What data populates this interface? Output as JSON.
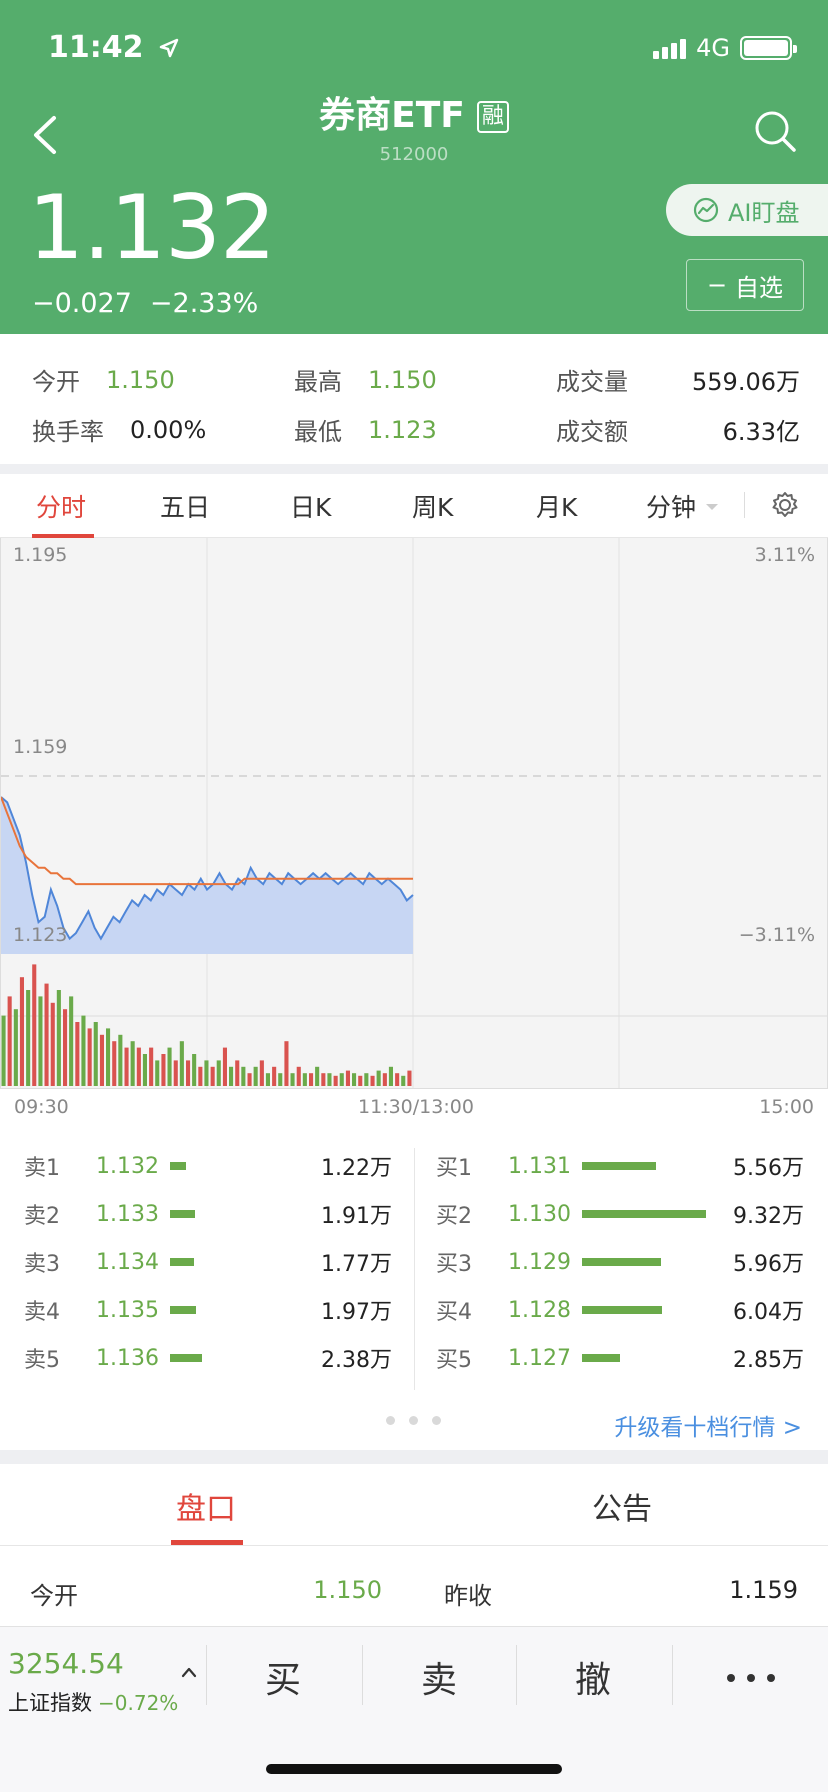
{
  "status_bar": {
    "time": "11:42",
    "network": "4G"
  },
  "header": {
    "title": "券商ETF",
    "badge": "融",
    "code": "512000",
    "price": "1.132",
    "change": "−0.027",
    "change_pct": "−2.33%",
    "ai_button": "AI盯盘",
    "watch_button": "自选",
    "watch_minus": "−"
  },
  "stats": {
    "open_label": "今开",
    "open": "1.150",
    "high_label": "最高",
    "high": "1.150",
    "volume_label": "成交量",
    "volume": "559.06万",
    "turnover_label": "换手率",
    "turnover": "0.00%",
    "low_label": "最低",
    "low": "1.123",
    "amount_label": "成交额",
    "amount": "6.33亿"
  },
  "tabs": [
    "分时",
    "五日",
    "日K",
    "周K",
    "月K",
    "分钟"
  ],
  "chart_data": {
    "type": "line",
    "y_top": "1.195",
    "y_mid": "1.159",
    "y_bottom": "1.123",
    "pct_top": "3.11%",
    "pct_bottom": "−3.11%",
    "x_labels": [
      "09:30",
      "11:30/13:00",
      "15:00"
    ],
    "ylim": [
      1.123,
      1.195
    ],
    "price_series": [
      1.15,
      1.149,
      1.146,
      1.143,
      1.138,
      1.132,
      1.127,
      1.128,
      1.133,
      1.13,
      1.126,
      1.124,
      1.125,
      1.127,
      1.129,
      1.126,
      1.124,
      1.126,
      1.128,
      1.127,
      1.129,
      1.131,
      1.13,
      1.132,
      1.131,
      1.133,
      1.132,
      1.134,
      1.133,
      1.132,
      1.134,
      1.133,
      1.135,
      1.133,
      1.134,
      1.136,
      1.134,
      1.133,
      1.135,
      1.134,
      1.137,
      1.135,
      1.134,
      1.136,
      1.135,
      1.134,
      1.136,
      1.135,
      1.134,
      1.135,
      1.136,
      1.135,
      1.136,
      1.135,
      1.134,
      1.135,
      1.136,
      1.135,
      1.134,
      1.136,
      1.135,
      1.134,
      1.135,
      1.134,
      1.133,
      1.131,
      1.132
    ],
    "avg_series": [
      1.15,
      1.147,
      1.144,
      1.141,
      1.139,
      1.138,
      1.137,
      1.137,
      1.136,
      1.136,
      1.135,
      1.135,
      1.134,
      1.134,
      1.134,
      1.134,
      1.134,
      1.134,
      1.134,
      1.134,
      1.134,
      1.134,
      1.134,
      1.134,
      1.134,
      1.134,
      1.134,
      1.134,
      1.134,
      1.134,
      1.134,
      1.134,
      1.134,
      1.134,
      1.134,
      1.134,
      1.134,
      1.134,
      1.134,
      1.135,
      1.135,
      1.135,
      1.135,
      1.135,
      1.135,
      1.135,
      1.135,
      1.135,
      1.135,
      1.135,
      1.135,
      1.135,
      1.135,
      1.135,
      1.135,
      1.135,
      1.135,
      1.135,
      1.135,
      1.135,
      1.135,
      1.135,
      1.135,
      1.135,
      1.135,
      1.135,
      1.135
    ],
    "volume_bars": [
      0.55,
      0.7,
      0.6,
      0.85,
      0.75,
      0.95,
      0.7,
      0.8,
      0.65,
      0.75,
      0.6,
      0.7,
      0.5,
      0.55,
      0.45,
      0.5,
      0.4,
      0.45,
      0.35,
      0.4,
      0.3,
      0.35,
      0.3,
      0.25,
      0.3,
      0.2,
      0.25,
      0.3,
      0.2,
      0.35,
      0.2,
      0.25,
      0.15,
      0.2,
      0.15,
      0.2,
      0.3,
      0.15,
      0.2,
      0.15,
      0.1,
      0.15,
      0.2,
      0.1,
      0.15,
      0.1,
      0.35,
      0.1,
      0.15,
      0.1,
      0.1,
      0.15,
      0.1,
      0.1,
      0.08,
      0.1,
      0.12,
      0.1,
      0.08,
      0.1,
      0.08,
      0.12,
      0.1,
      0.15,
      0.1,
      0.08,
      0.12
    ],
    "volume_colors": [
      "g",
      "r",
      "g",
      "r",
      "g",
      "r",
      "g",
      "r",
      "r",
      "g",
      "r",
      "g",
      "r",
      "g",
      "r",
      "g",
      "r",
      "g",
      "r",
      "g",
      "r",
      "g",
      "r",
      "g",
      "r",
      "g",
      "r",
      "g",
      "r",
      "g",
      "r",
      "g",
      "r",
      "g",
      "r",
      "g",
      "r",
      "g",
      "r",
      "g",
      "r",
      "g",
      "r",
      "g",
      "r",
      "g",
      "r",
      "g",
      "r",
      "g",
      "r",
      "g",
      "r",
      "g",
      "r",
      "g",
      "r",
      "g",
      "r",
      "g",
      "r",
      "g",
      "r",
      "g",
      "r",
      "g",
      "r"
    ]
  },
  "order_book": {
    "asks": [
      {
        "label": "卖1",
        "price": "1.132",
        "vol": "1.22万",
        "ratio": 0.131
      },
      {
        "label": "卖2",
        "price": "1.133",
        "vol": "1.91万",
        "ratio": 0.205
      },
      {
        "label": "卖3",
        "price": "1.134",
        "vol": "1.77万",
        "ratio": 0.19
      },
      {
        "label": "卖4",
        "price": "1.135",
        "vol": "1.97万",
        "ratio": 0.211
      },
      {
        "label": "卖5",
        "price": "1.136",
        "vol": "2.38万",
        "ratio": 0.255
      }
    ],
    "bids": [
      {
        "label": "买1",
        "price": "1.131",
        "vol": "5.56万",
        "ratio": 0.597
      },
      {
        "label": "买2",
        "price": "1.130",
        "vol": "9.32万",
        "ratio": 1.0
      },
      {
        "label": "买3",
        "price": "1.129",
        "vol": "5.96万",
        "ratio": 0.64
      },
      {
        "label": "买4",
        "price": "1.128",
        "vol": "6.04万",
        "ratio": 0.648
      },
      {
        "label": "买5",
        "price": "1.127",
        "vol": "2.85万",
        "ratio": 0.306
      }
    ],
    "upgrade_link": "升级看十档行情 >"
  },
  "sub_tabs": [
    "盘口",
    "公告"
  ],
  "detail": {
    "open_label": "今开",
    "open": "1.150",
    "prev_close_label": "昨收",
    "prev_close": "1.159"
  },
  "bottom_bar": {
    "index_price": "3254.54",
    "index_name": "上证指数",
    "index_change": "−0.72%",
    "buy": "买",
    "sell": "卖",
    "cancel": "撤"
  },
  "colors": {
    "header_green": "#55ad6c",
    "down_green": "#6aaa4a",
    "accent_red": "#e0463c",
    "link_blue": "#4a8fe0"
  }
}
